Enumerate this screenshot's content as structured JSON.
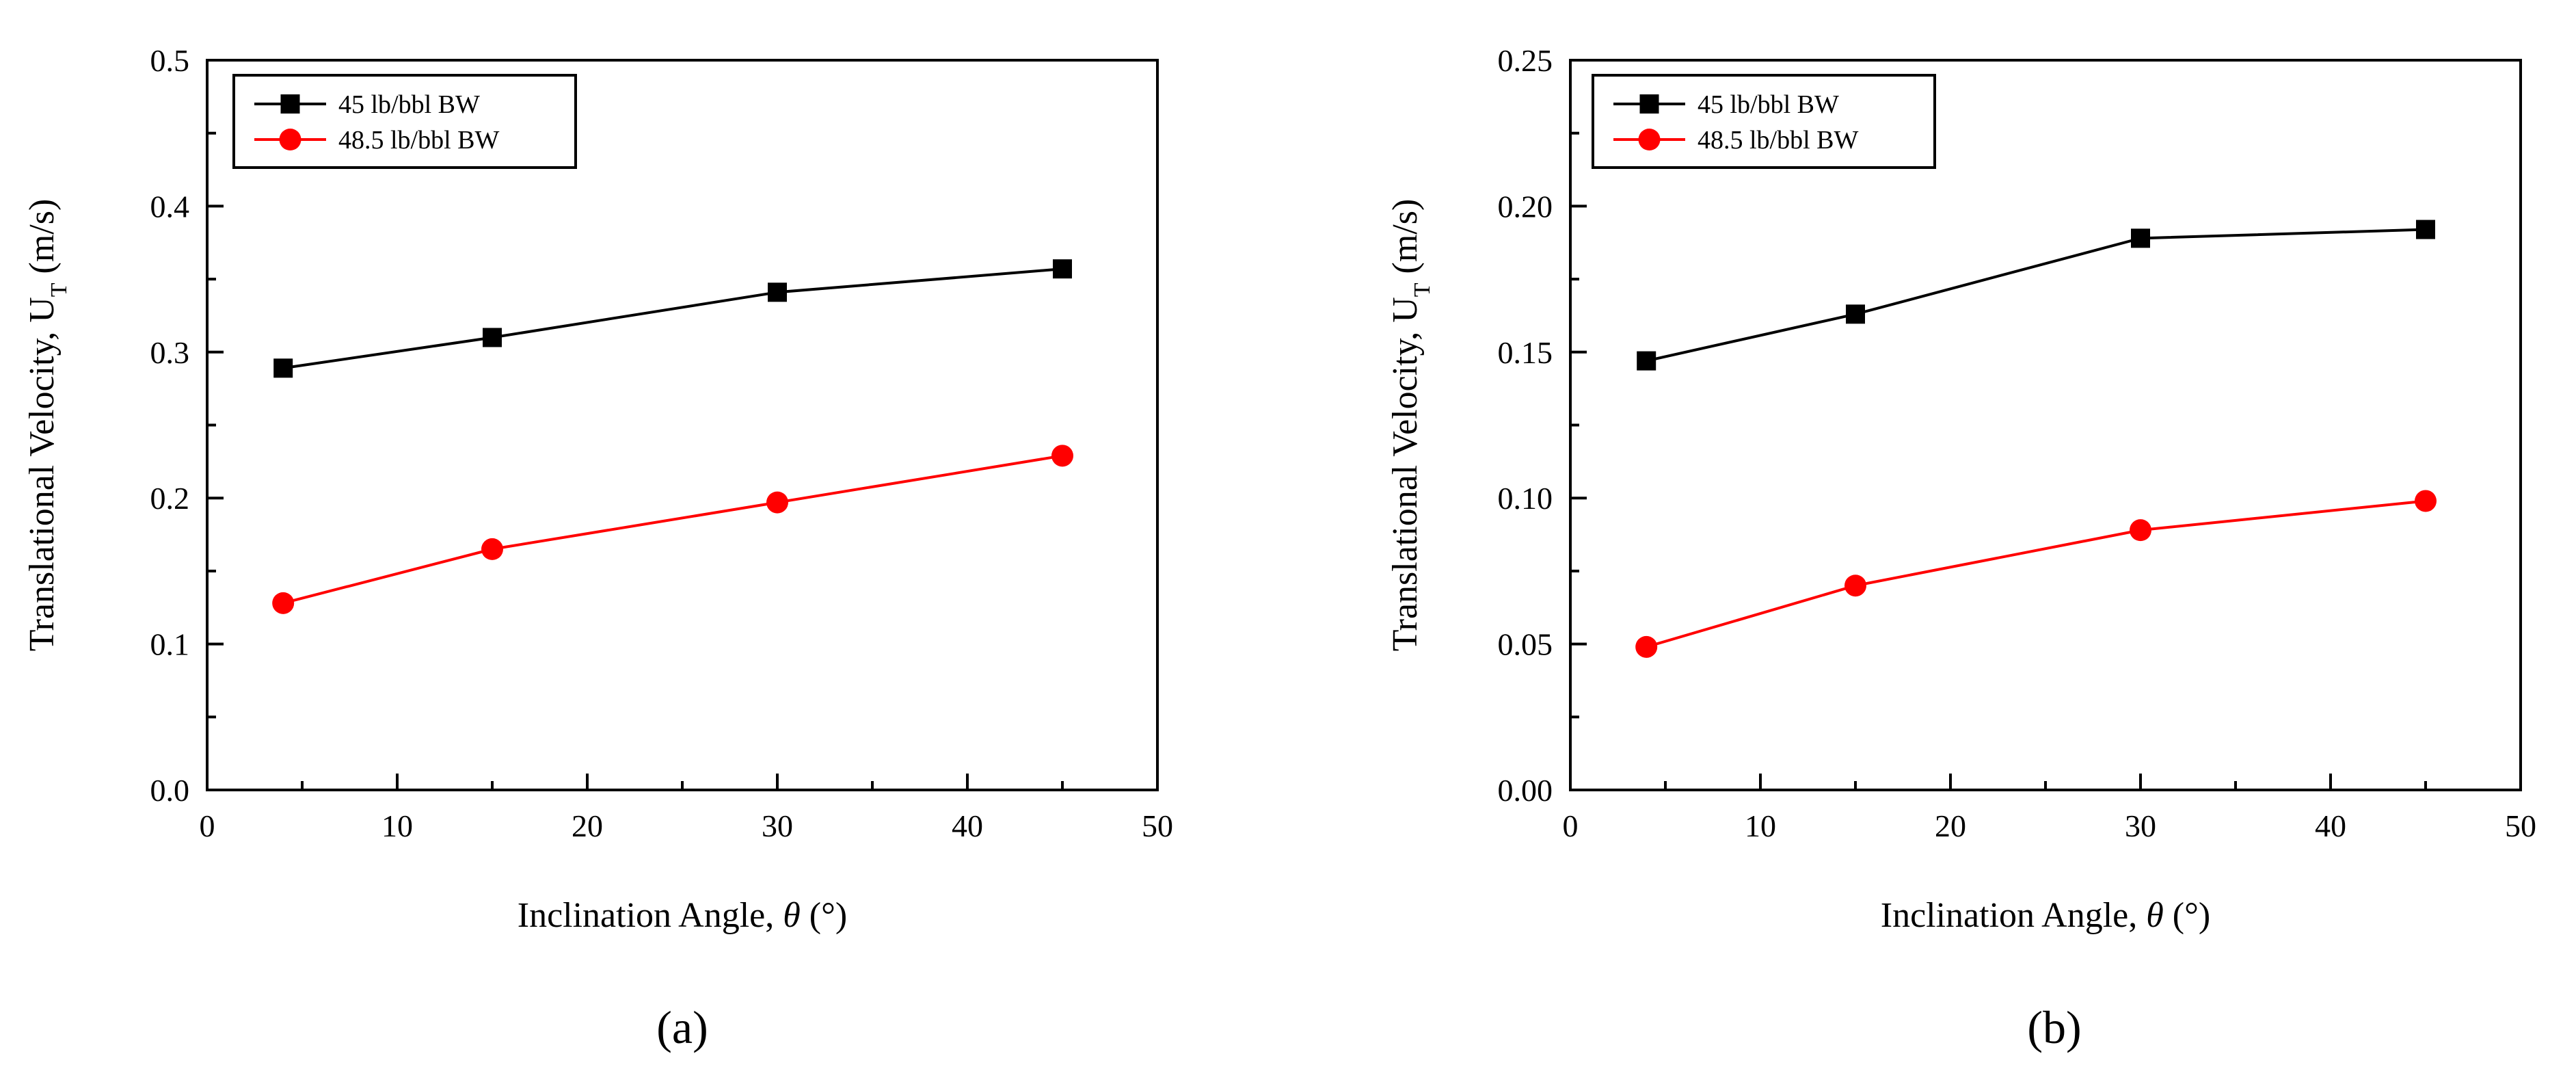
{
  "chart_data": [
    {
      "id": "a",
      "type": "line",
      "panel_label": "(a)",
      "xlabel_main": "Inclination Angle, ",
      "xlabel_symbol": "θ",
      "xlabel_unit": " (°)",
      "ylabel_main": "Translational Velocity, U",
      "ylabel_sub": "T",
      "ylabel_unit": " (m/s)",
      "xlim": [
        0,
        50
      ],
      "ylim": [
        0.0,
        0.5
      ],
      "xticks": [
        0,
        10,
        20,
        30,
        40,
        50
      ],
      "xtick_labels": [
        "0",
        "10",
        "20",
        "30",
        "40",
        "50"
      ],
      "yticks": [
        0.0,
        0.1,
        0.2,
        0.3,
        0.4,
        0.5
      ],
      "ytick_labels": [
        "0.0",
        "0.1",
        "0.2",
        "0.3",
        "0.4",
        "0.5"
      ],
      "legend_position": "top-left",
      "series": [
        {
          "name": "45 lb/bbl BW",
          "color": "#000000",
          "marker": "square",
          "x": [
            4,
            15,
            30,
            45
          ],
          "y": [
            0.289,
            0.31,
            0.341,
            0.357
          ]
        },
        {
          "name": "48.5 lb/bbl BW",
          "color": "#ff0000",
          "marker": "circle",
          "x": [
            4,
            15,
            30,
            45
          ],
          "y": [
            0.128,
            0.165,
            0.197,
            0.229
          ]
        }
      ]
    },
    {
      "id": "b",
      "type": "line",
      "panel_label": "(b)",
      "xlabel_main": "Inclination Angle, ",
      "xlabel_symbol": "θ",
      "xlabel_unit": " (°)",
      "ylabel_main": "Translational Velocity, U",
      "ylabel_sub": "T",
      "ylabel_unit": " (m/s)",
      "xlim": [
        0,
        50
      ],
      "ylim": [
        0.0,
        0.25
      ],
      "xticks": [
        0,
        10,
        20,
        30,
        40,
        50
      ],
      "xtick_labels": [
        "0",
        "10",
        "20",
        "30",
        "40",
        "50"
      ],
      "yticks": [
        0.0,
        0.05,
        0.1,
        0.15,
        0.2,
        0.25
      ],
      "ytick_labels": [
        "0.00",
        "0.05",
        "0.10",
        "0.15",
        "0.20",
        "0.25"
      ],
      "legend_position": "top-left",
      "series": [
        {
          "name": "45 lb/bbl BW",
          "color": "#000000",
          "marker": "square",
          "x": [
            4,
            15,
            30,
            45
          ],
          "y": [
            0.147,
            0.163,
            0.189,
            0.192
          ]
        },
        {
          "name": "48.5 lb/bbl BW",
          "color": "#ff0000",
          "marker": "circle",
          "x": [
            4,
            15,
            30,
            45
          ],
          "y": [
            0.049,
            0.07,
            0.089,
            0.099
          ]
        }
      ]
    }
  ]
}
